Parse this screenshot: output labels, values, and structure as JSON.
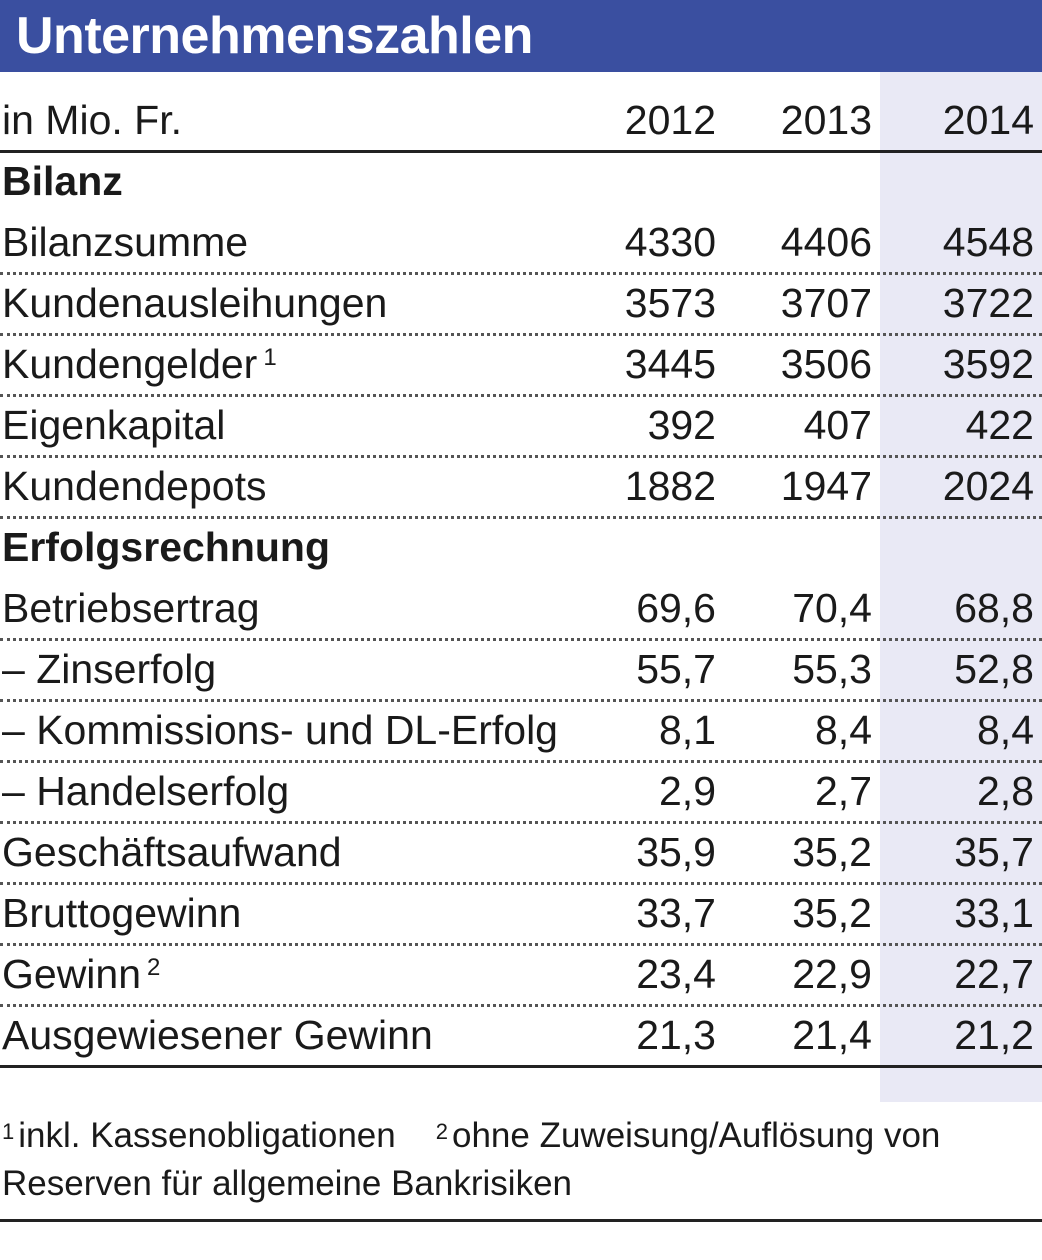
{
  "title": "Unternehmenszahlen",
  "colors": {
    "header": "#3a4fa0",
    "highlight_column": "#e9e9f5"
  },
  "chart_data": {
    "type": "table",
    "title": "Unternehmenszahlen",
    "unit_label": "in Mio. Fr.",
    "columns": [
      "2012",
      "2013",
      "2014"
    ],
    "highlight_column": "2014",
    "sections": [
      {
        "name": "Bilanz",
        "rows": [
          {
            "label": "Bilanzsumme",
            "note": "",
            "values": [
              "4330",
              "4406",
              "4548"
            ]
          },
          {
            "label": "Kundenausleihungen",
            "note": "",
            "values": [
              "3573",
              "3707",
              "3722"
            ]
          },
          {
            "label": "Kundengelder",
            "note": "1",
            "values": [
              "3445",
              "3506",
              "3592"
            ]
          },
          {
            "label": "Eigenkapital",
            "note": "",
            "values": [
              "392",
              "407",
              "422"
            ]
          },
          {
            "label": "Kundendepots",
            "note": "",
            "values": [
              "1882",
              "1947",
              "2024"
            ]
          }
        ]
      },
      {
        "name": "Erfolgsrechnung",
        "rows": [
          {
            "label": "Betriebsertrag",
            "note": "",
            "values": [
              "69,6",
              "70,4",
              "68,8"
            ]
          },
          {
            "label": "– Zinserfolg",
            "note": "",
            "values": [
              "55,7",
              "55,3",
              "52,8"
            ]
          },
          {
            "label": "– Kommissions- und DL-Erfolg",
            "note": "",
            "values": [
              "8,1",
              "8,4",
              "8,4"
            ]
          },
          {
            "label": "– Handelserfolg",
            "note": "",
            "values": [
              "2,9",
              "2,7",
              "2,8"
            ]
          },
          {
            "label": "Geschäftsaufwand",
            "note": "",
            "values": [
              "35,9",
              "35,2",
              "35,7"
            ]
          },
          {
            "label": "Bruttogewinn",
            "note": "",
            "values": [
              "33,7",
              "35,2",
              "33,1"
            ]
          },
          {
            "label": "Gewinn",
            "note": "2",
            "values": [
              "23,4",
              "22,9",
              "22,7"
            ]
          },
          {
            "label": "Ausgewiesener Gewinn",
            "note": "",
            "values": [
              "21,3",
              "21,4",
              "21,2"
            ]
          }
        ]
      }
    ],
    "footnotes": [
      {
        "mark": "1",
        "text": "inkl. Kassenobligationen"
      },
      {
        "mark": "2",
        "text": "ohne Zuweisung/Auflösung von"
      }
    ],
    "footnote_continuation": "Reserven für allgemeine Bankrisiken"
  }
}
